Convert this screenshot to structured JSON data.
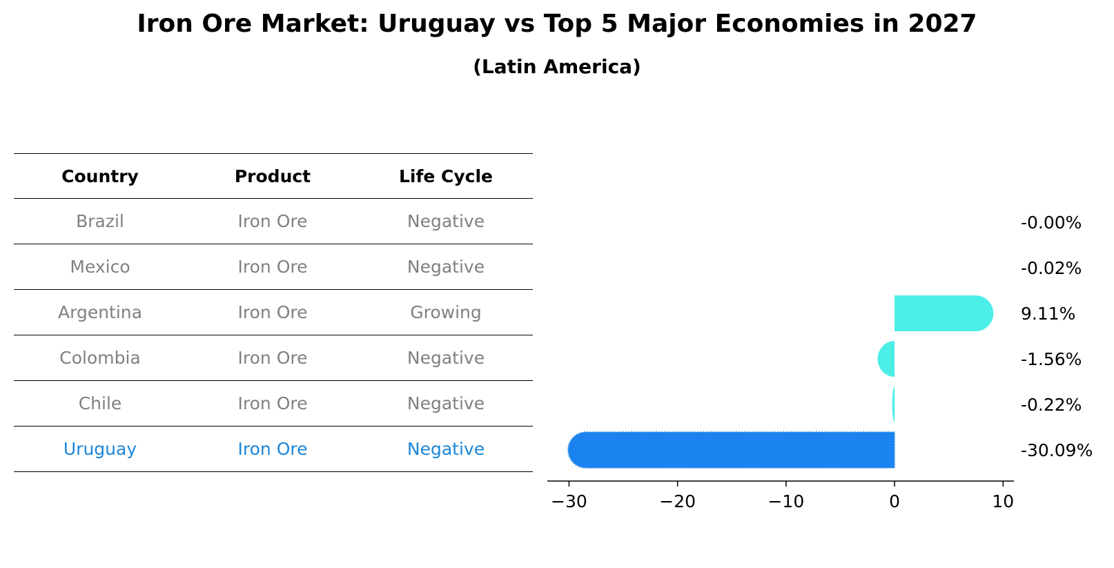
{
  "title": "Iron Ore Market: Uruguay vs Top 5 Major Economies in 2027",
  "subtitle": "(Latin America)",
  "table": {
    "headers": [
      "Country",
      "Product",
      "Life Cycle"
    ],
    "rows": [
      {
        "country": "Brazil",
        "product": "Iron Ore",
        "life_cycle": "Negative"
      },
      {
        "country": "Mexico",
        "product": "Iron Ore",
        "life_cycle": "Negative"
      },
      {
        "country": "Argentina",
        "product": "Iron Ore",
        "life_cycle": "Growing"
      },
      {
        "country": "Colombia",
        "product": "Iron Ore",
        "life_cycle": "Negative"
      },
      {
        "country": "Chile",
        "product": "Iron Ore",
        "life_cycle": "Negative"
      },
      {
        "country": "Uruguay",
        "product": "Iron Ore",
        "life_cycle": "Negative"
      }
    ],
    "highlight_color": "#1a86d9",
    "text_color": "#808080"
  },
  "chart_data": {
    "type": "bar",
    "orientation": "horizontal",
    "categories": [
      "Brazil",
      "Mexico",
      "Argentina",
      "Colombia",
      "Chile",
      "Uruguay"
    ],
    "values": [
      -0.0,
      -0.02,
      9.11,
      -1.56,
      -0.22,
      -30.09
    ],
    "labels": [
      "-0.00%",
      "-0.02%",
      "9.11%",
      "-1.56%",
      "-0.22%",
      "-30.09%"
    ],
    "xlim": [
      -32,
      11
    ],
    "xticks": [
      -30,
      -20,
      -10,
      0,
      10
    ],
    "xtick_labels": [
      "−30",
      "−20",
      "−10",
      "0",
      "10"
    ],
    "colors": {
      "others": "#4ceee8",
      "highlight": "#1a83f0"
    },
    "highlight": "Uruguay",
    "grid": false
  }
}
